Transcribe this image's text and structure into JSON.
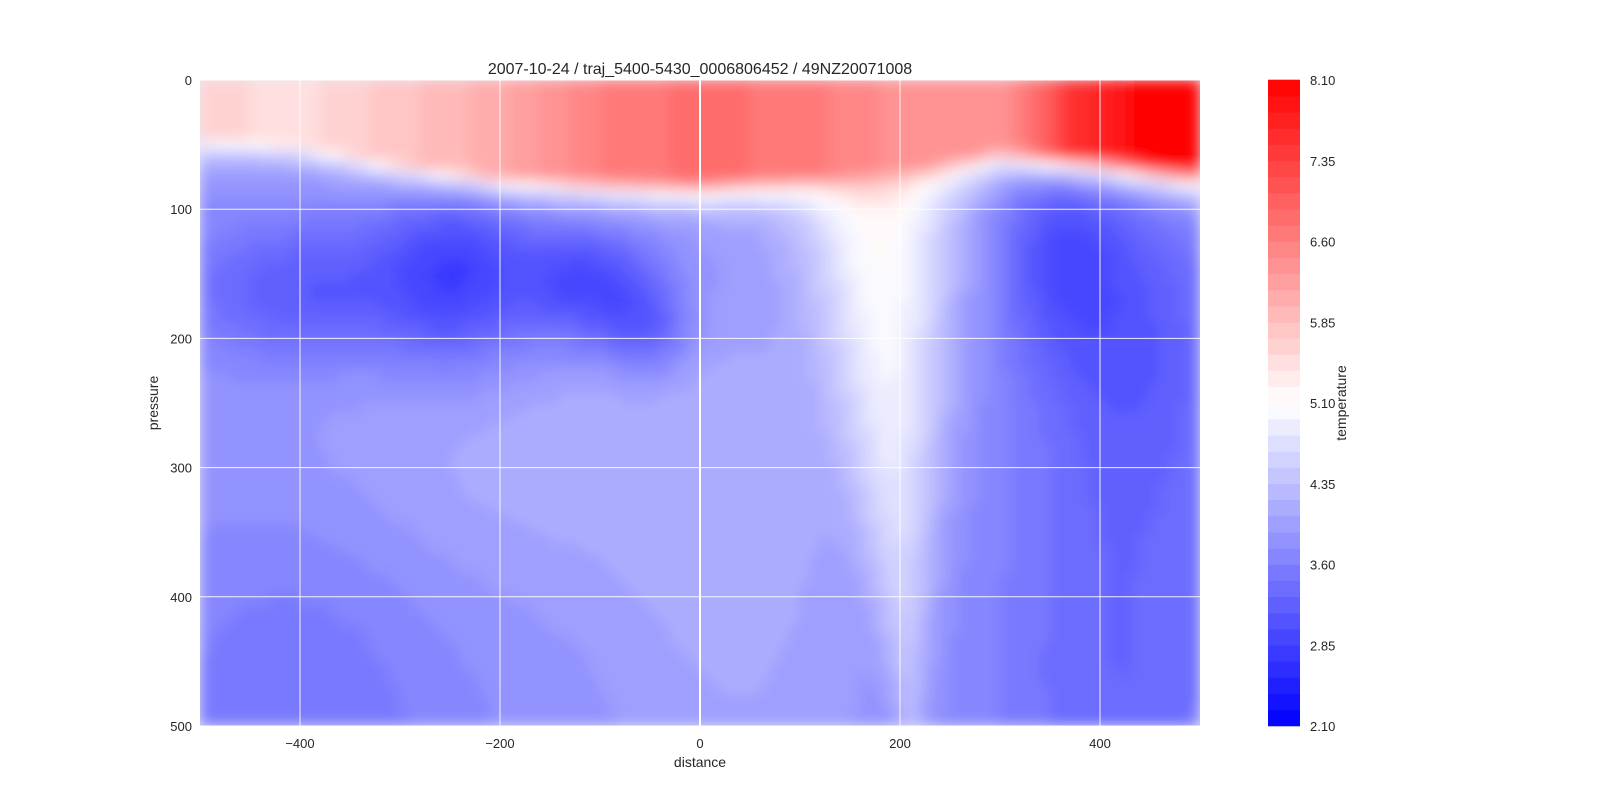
{
  "chart_data": {
    "type": "heatmap",
    "title": "2007-10-24 / traj_5400-5430_0006806452 / 49NZ20071008",
    "xlabel": "distance",
    "ylabel": "pressure",
    "xlim": [
      -500,
      500
    ],
    "ylim": [
      500,
      0
    ],
    "y_inverted": true,
    "xticks": [
      -400,
      -200,
      0,
      200,
      400
    ],
    "xtick_labels": [
      "−400",
      "−200",
      "0",
      "200",
      "400"
    ],
    "yticks": [
      0,
      100,
      200,
      300,
      400,
      500
    ],
    "ytick_labels": [
      "0",
      "100",
      "200",
      "300",
      "400",
      "500"
    ],
    "grid": true,
    "vertical_line_x": 0,
    "colorbar": {
      "label": "temperature",
      "min": 2.1,
      "max": 8.1,
      "ticks": [
        2.1,
        2.85,
        3.6,
        4.35,
        5.1,
        5.85,
        6.6,
        7.35,
        8.1
      ],
      "tick_labels": [
        "2.10",
        "2.85",
        "3.60",
        "4.35",
        "5.10",
        "5.85",
        "6.60",
        "7.35",
        "8.10"
      ],
      "levels": 40,
      "cmap": "bwr",
      "color_low": "#0000ff",
      "color_mid": "#ffffff",
      "color_high": "#ff0000"
    },
    "approx_field": {
      "description_levels": "approximate temperature read from contour colours",
      "surface_layer_mixed_depth": [
        [
          -500,
          45
        ],
        [
          -400,
          50
        ],
        [
          -300,
          65
        ],
        [
          -200,
          75
        ],
        [
          -100,
          78
        ],
        [
          0,
          80
        ],
        [
          100,
          75
        ],
        [
          200,
          70
        ],
        [
          300,
          55
        ],
        [
          400,
          60
        ],
        [
          500,
          70
        ]
      ],
      "surface_temperature": [
        [
          -500,
          5.6
        ],
        [
          -400,
          5.5
        ],
        [
          -300,
          5.8
        ],
        [
          -200,
          6.1
        ],
        [
          -100,
          6.6
        ],
        [
          0,
          6.8
        ],
        [
          100,
          6.7
        ],
        [
          200,
          6.4
        ],
        [
          300,
          6.3
        ],
        [
          380,
          7.6
        ],
        [
          450,
          8.1
        ],
        [
          500,
          8.1
        ]
      ],
      "cold_core": [
        {
          "x": -240,
          "p": 150,
          "t": 2.4
        },
        {
          "x": -120,
          "p": 160,
          "t": 2.3
        },
        {
          "x": -60,
          "p": 190,
          "t": 2.6
        },
        {
          "x": -400,
          "p": 160,
          "t": 3.0
        },
        {
          "x": 370,
          "p": 120,
          "t": 3.0
        }
      ],
      "warm_tongue": [
        {
          "x": 180,
          "p": 150,
          "t": 5.3
        },
        {
          "x": 200,
          "p": 300,
          "t": 4.9
        },
        {
          "x": 210,
          "p": 450,
          "t": 4.5
        }
      ],
      "deep_temperature": [
        {
          "x": -400,
          "p": 450,
          "t": 3.5
        },
        {
          "x": -100,
          "p": 400,
          "t": 3.8
        },
        {
          "x": 50,
          "p": 400,
          "t": 4.0
        },
        {
          "x": 420,
          "p": 450,
          "t": 3.4
        }
      ]
    }
  }
}
